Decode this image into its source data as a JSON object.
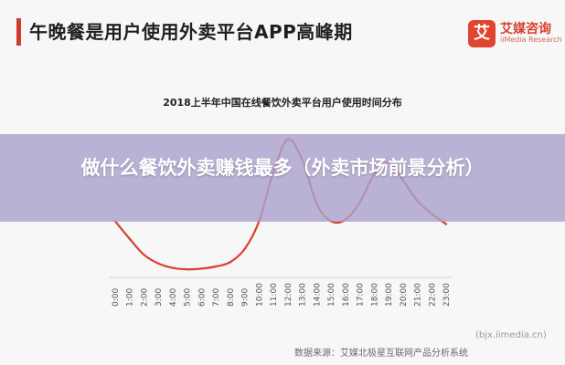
{
  "slide": {
    "headline": "午晚餐是用户使用外卖平台APP高峰期",
    "logo": {
      "mark": "艾",
      "name_cn": "艾媒咨询",
      "name_en": "iiMedia Research"
    },
    "source": "数据来源：艾媒北极星互联网产品分析系统",
    "watermark_text": "(bjx.iimedia.cn)"
  },
  "overlay": {
    "title": "做什么餐饮外卖赚钱最多（外卖市场前景分析）"
  },
  "chart_data": {
    "type": "line",
    "title": "2018上半年中国在线餐饮外卖平台用户使用时间分布",
    "x": [
      "0:00",
      "1:00",
      "2:00",
      "3:00",
      "4:00",
      "5:00",
      "6:00",
      "7:00",
      "8:00",
      "9:00",
      "10:00",
      "11:00",
      "12:00",
      "13:00",
      "14:00",
      "15:00",
      "16:00",
      "17:00",
      "18:00",
      "19:00",
      "20:00",
      "21:00",
      "22:00",
      "23:00"
    ],
    "series": [
      {
        "values": [
          3.6,
          2.4,
          1.3,
          0.7,
          0.4,
          0.3,
          0.35,
          0.5,
          0.8,
          1.7,
          3.6,
          7.0,
          9.2,
          7.8,
          4.8,
          3.6,
          3.7,
          4.9,
          6.8,
          7.6,
          6.4,
          5.0,
          4.1,
          3.4
        ],
        "color": "#d9402f"
      }
    ],
    "ylim": [
      0,
      10
    ],
    "grid": false,
    "legend": "none"
  }
}
